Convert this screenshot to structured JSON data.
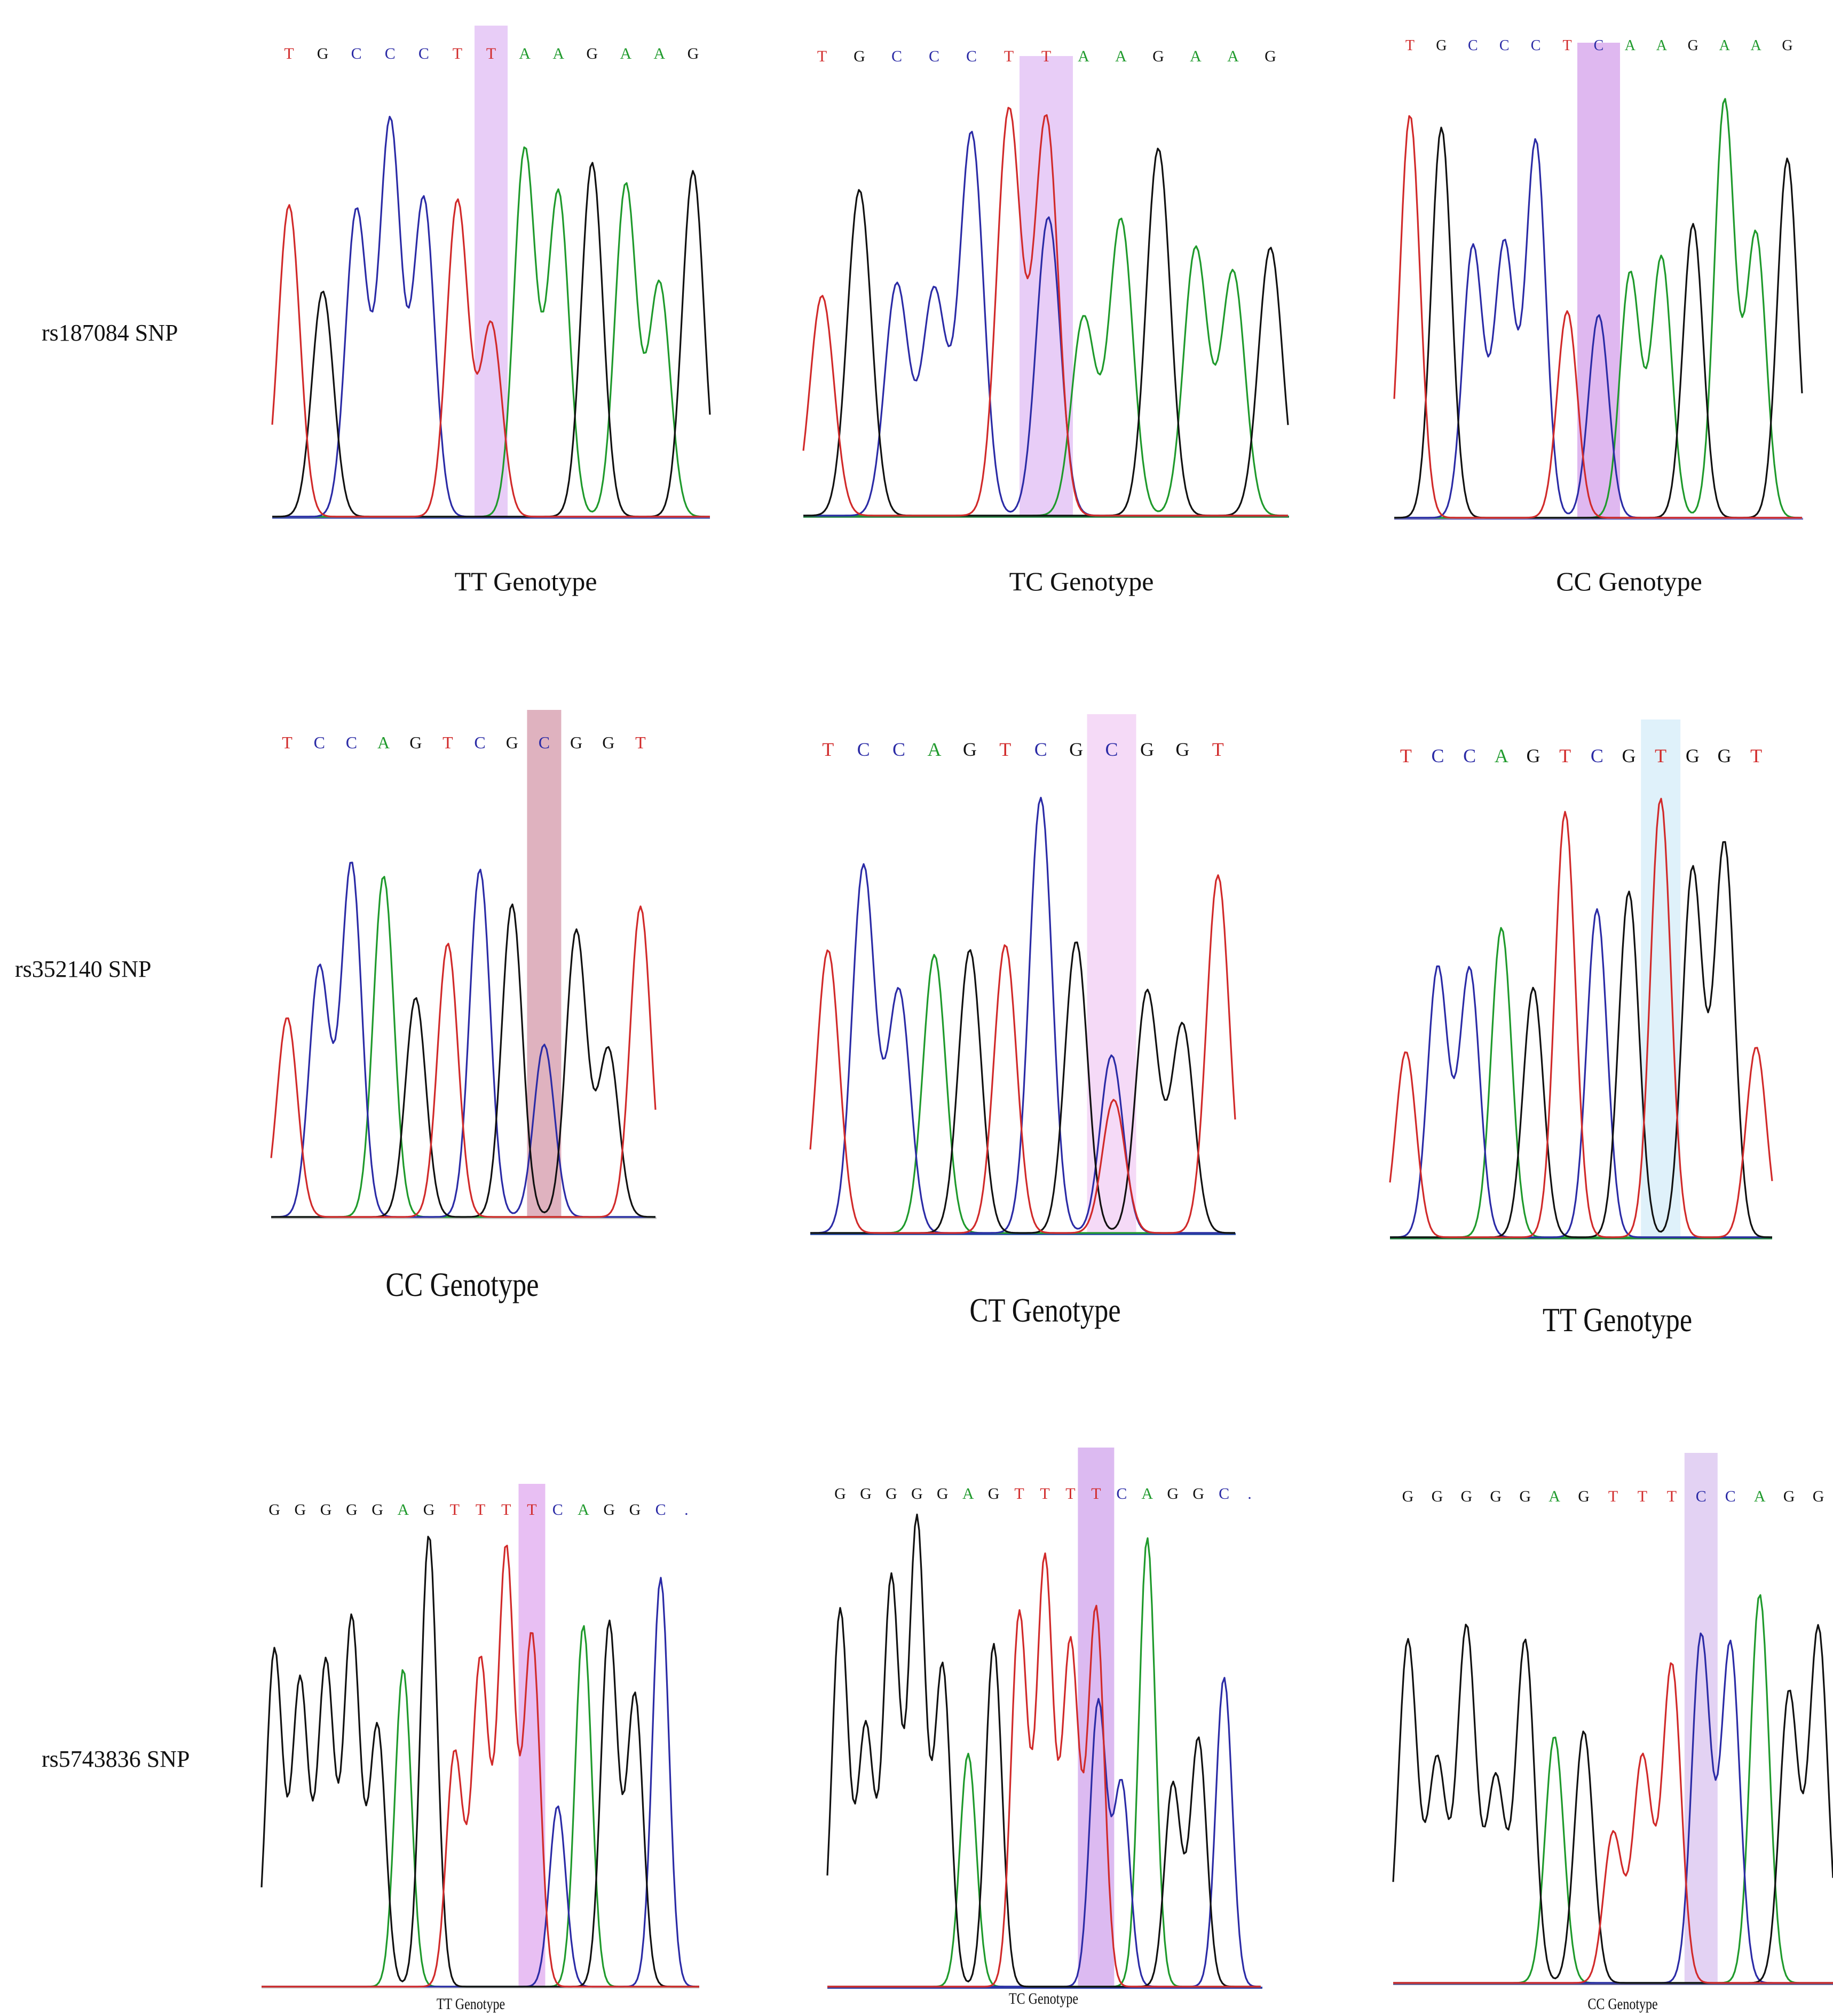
{
  "rows": [
    {
      "label": "rs187084 SNP",
      "panels": [
        {
          "genotype_label": "TT Genotype",
          "sequence": [
            "T",
            "G",
            "C",
            "C",
            "C",
            "T",
            "T",
            "A",
            "A",
            "G",
            "A",
            "A",
            "G"
          ],
          "highlight_index": 6,
          "highlight_color": "#e6c8f6"
        },
        {
          "genotype_label": "TC Genotype",
          "sequence": [
            "T",
            "G",
            "C",
            "C",
            "C",
            "T",
            "T",
            "A",
            "A",
            "G",
            "A",
            "A",
            "G"
          ],
          "highlight_index": 6,
          "highlight_color": "#e6c8f6"
        },
        {
          "genotype_label": "CC Genotype",
          "sequence": [
            "T",
            "G",
            "C",
            "C",
            "C",
            "T",
            "C",
            "A",
            "A",
            "G",
            "A",
            "A",
            "G"
          ],
          "highlight_index": 6,
          "highlight_color": "#dcb0ee"
        }
      ]
    },
    {
      "label": "rs352140 SNP",
      "panels": [
        {
          "genotype_label": "CC Genotype",
          "sequence": [
            "T",
            "C",
            "C",
            "A",
            "G",
            "T",
            "C",
            "G",
            "C",
            "G",
            "G",
            "T"
          ],
          "highlight_index": 8,
          "highlight_color": "#dcaab8"
        },
        {
          "genotype_label": "CT Genotype",
          "sequence": [
            "T",
            "C",
            "C",
            "A",
            "G",
            "T",
            "C",
            "G",
            "C",
            "G",
            "G",
            "T"
          ],
          "highlight_index": 8,
          "highlight_color": "#f4d6f6"
        },
        {
          "genotype_label": "TT Genotype",
          "sequence": [
            "T",
            "C",
            "C",
            "A",
            "G",
            "T",
            "C",
            "G",
            "T",
            "G",
            "G",
            "T"
          ],
          "highlight_index": 8,
          "highlight_color": "#dcf0fa"
        }
      ]
    },
    {
      "label": "rs5743836 SNP",
      "panels": [
        {
          "genotype_label": "TT Genotype",
          "sequence": [
            "G",
            "G",
            "G",
            "G",
            "G",
            "A",
            "G",
            "T",
            "T",
            "T",
            "T",
            "C",
            "A",
            "G",
            "G",
            "C",
            "."
          ],
          "highlight_index": 10,
          "highlight_color": "#e6b8f2"
        },
        {
          "genotype_label": "TC Genotype",
          "sequence": [
            "G",
            "G",
            "G",
            "G",
            "G",
            "A",
            "G",
            "T",
            "T",
            "T",
            "T",
            "C",
            "A",
            "G",
            "G",
            "C",
            "."
          ],
          "highlight_index": 10,
          "highlight_color": "#d8b2f0"
        },
        {
          "genotype_label": "CC Genotype",
          "sequence": [
            "G",
            "G",
            "G",
            "G",
            "G",
            "A",
            "G",
            "T",
            "T",
            "T",
            "C",
            "C",
            "A",
            "G",
            "G"
          ],
          "highlight_index": 10,
          "highlight_color": "#e0cdf2"
        }
      ]
    }
  ],
  "base_colors": {
    "A": "#1f9a2c",
    "C": "#2b2ba6",
    "G": "#111111",
    "T": "#d12a2a",
    ".": "#2b2ba6"
  }
}
